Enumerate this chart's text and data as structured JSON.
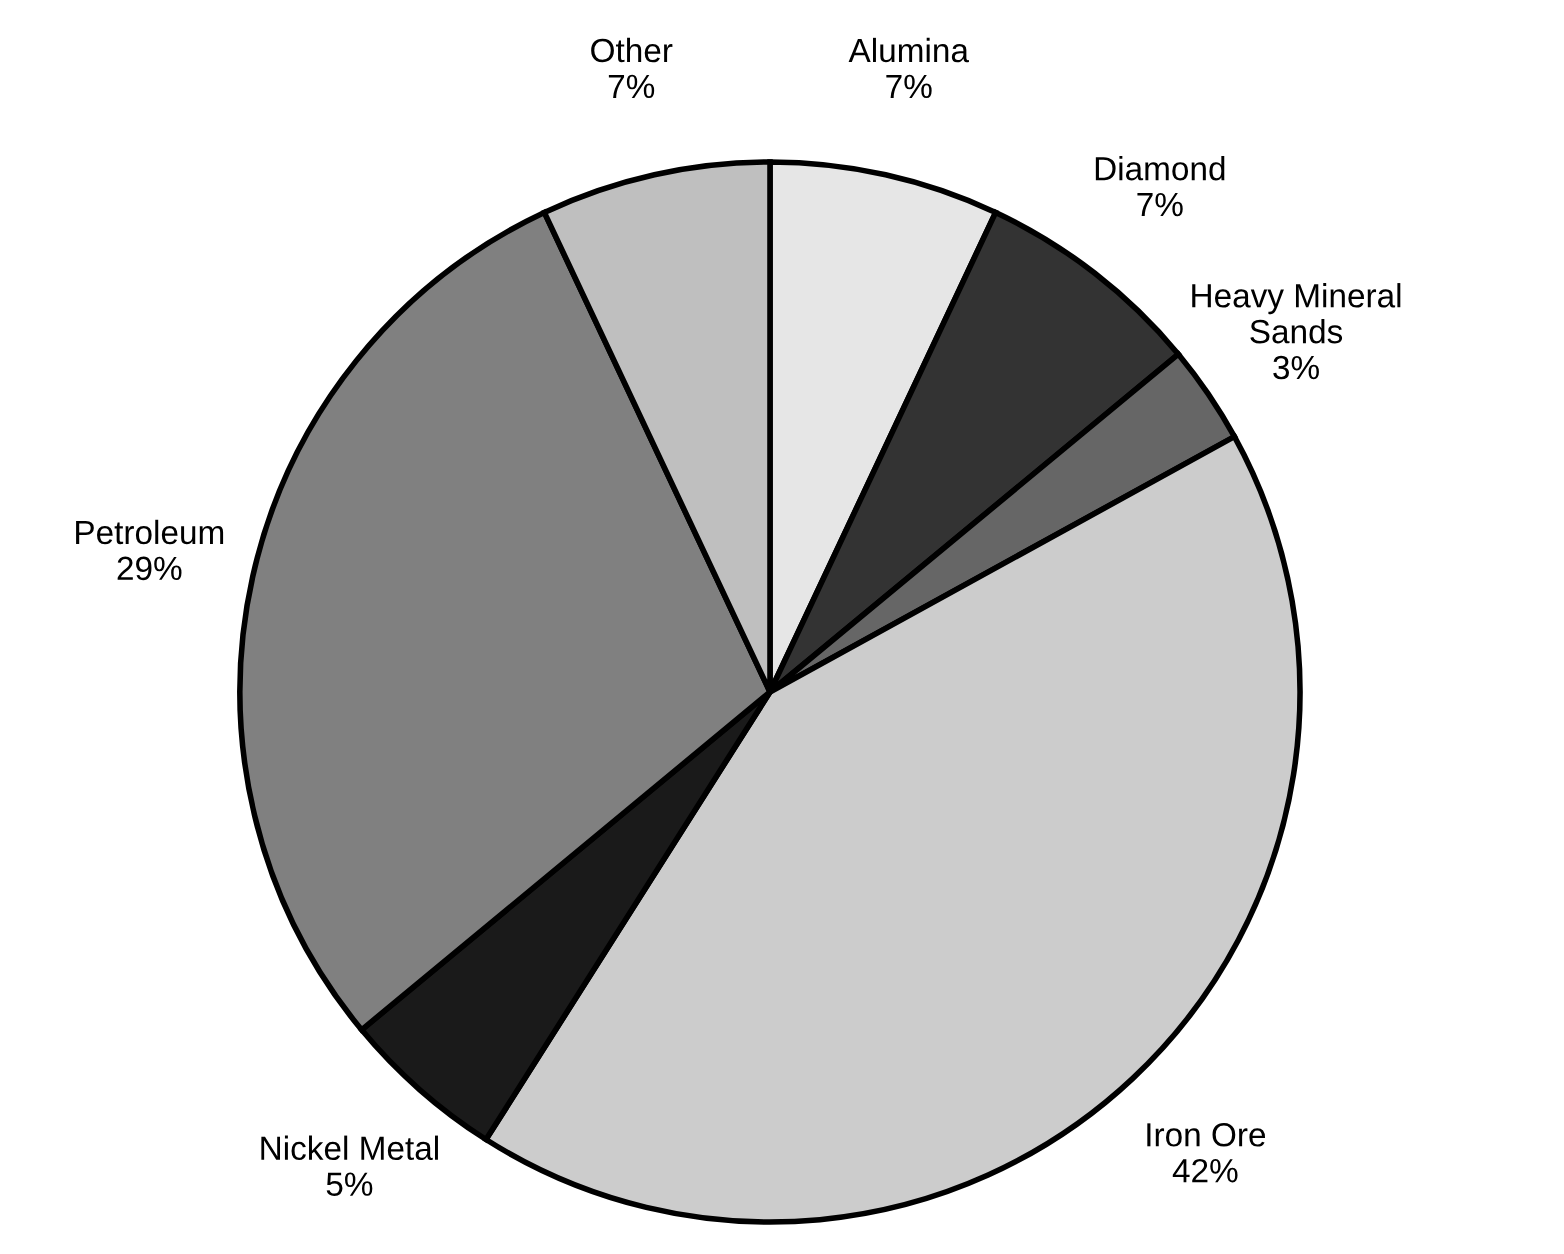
{
  "chart_data": {
    "type": "pie",
    "categories": [
      "Alumina",
      "Diamond",
      "Heavy Mineral\nSands",
      "Iron Ore",
      "Nickel Metal",
      "Petroleum",
      "Other"
    ],
    "values": [
      7,
      7,
      3,
      42,
      5,
      29,
      7
    ],
    "value_labels": [
      "7%",
      "7%",
      "3%",
      "42%",
      "5%",
      "29%",
      "7%"
    ],
    "colors": [
      "#e6e6e6",
      "#333333",
      "#666666",
      "#cccccc",
      "#1a1a1a",
      "#808080",
      "#bfbfbf"
    ],
    "legend": false
  }
}
